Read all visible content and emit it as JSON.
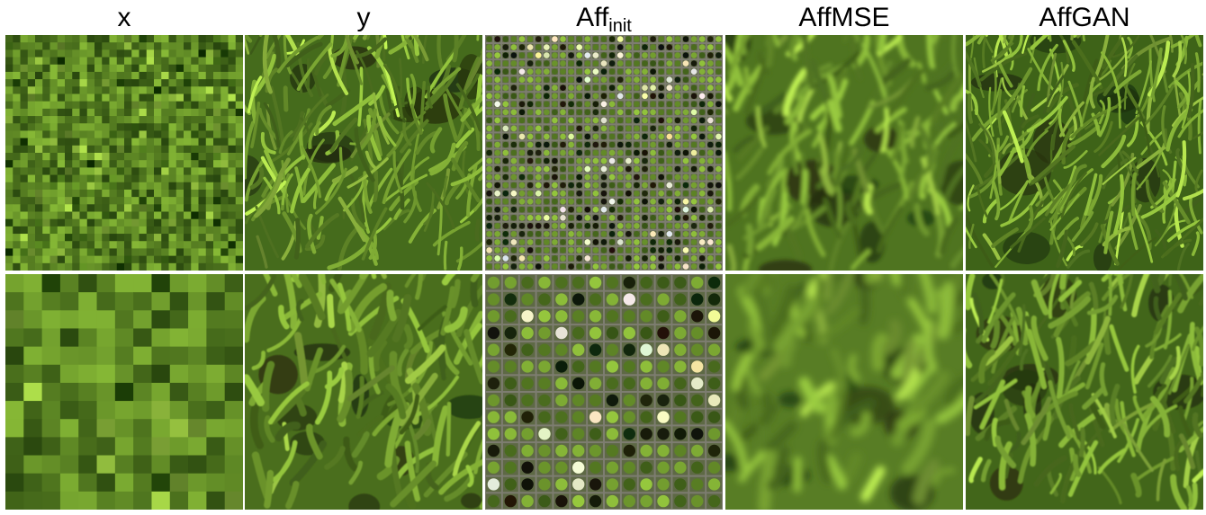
{
  "columns": [
    {
      "id": "x",
      "title": "x",
      "subscript": ""
    },
    {
      "id": "y",
      "title": "y",
      "subscript": ""
    },
    {
      "id": "aff_init",
      "title": "Aff",
      "subscript": "init"
    },
    {
      "id": "affmse",
      "title": "AffMSE",
      "subscript": ""
    },
    {
      "id": "affgan",
      "title": "AffGAN",
      "subscript": ""
    }
  ],
  "rows": [
    {
      "id": "row-1",
      "content": "grass texture, fine scale"
    },
    {
      "id": "row-2",
      "content": "grass texture, zoomed"
    }
  ],
  "colors": {
    "grass_dark": "#2f4a12",
    "grass_mid": "#5f8a24",
    "grass_light": "#9cc24a",
    "grid_gray": "#7d7d70",
    "background": "#ffffff"
  }
}
